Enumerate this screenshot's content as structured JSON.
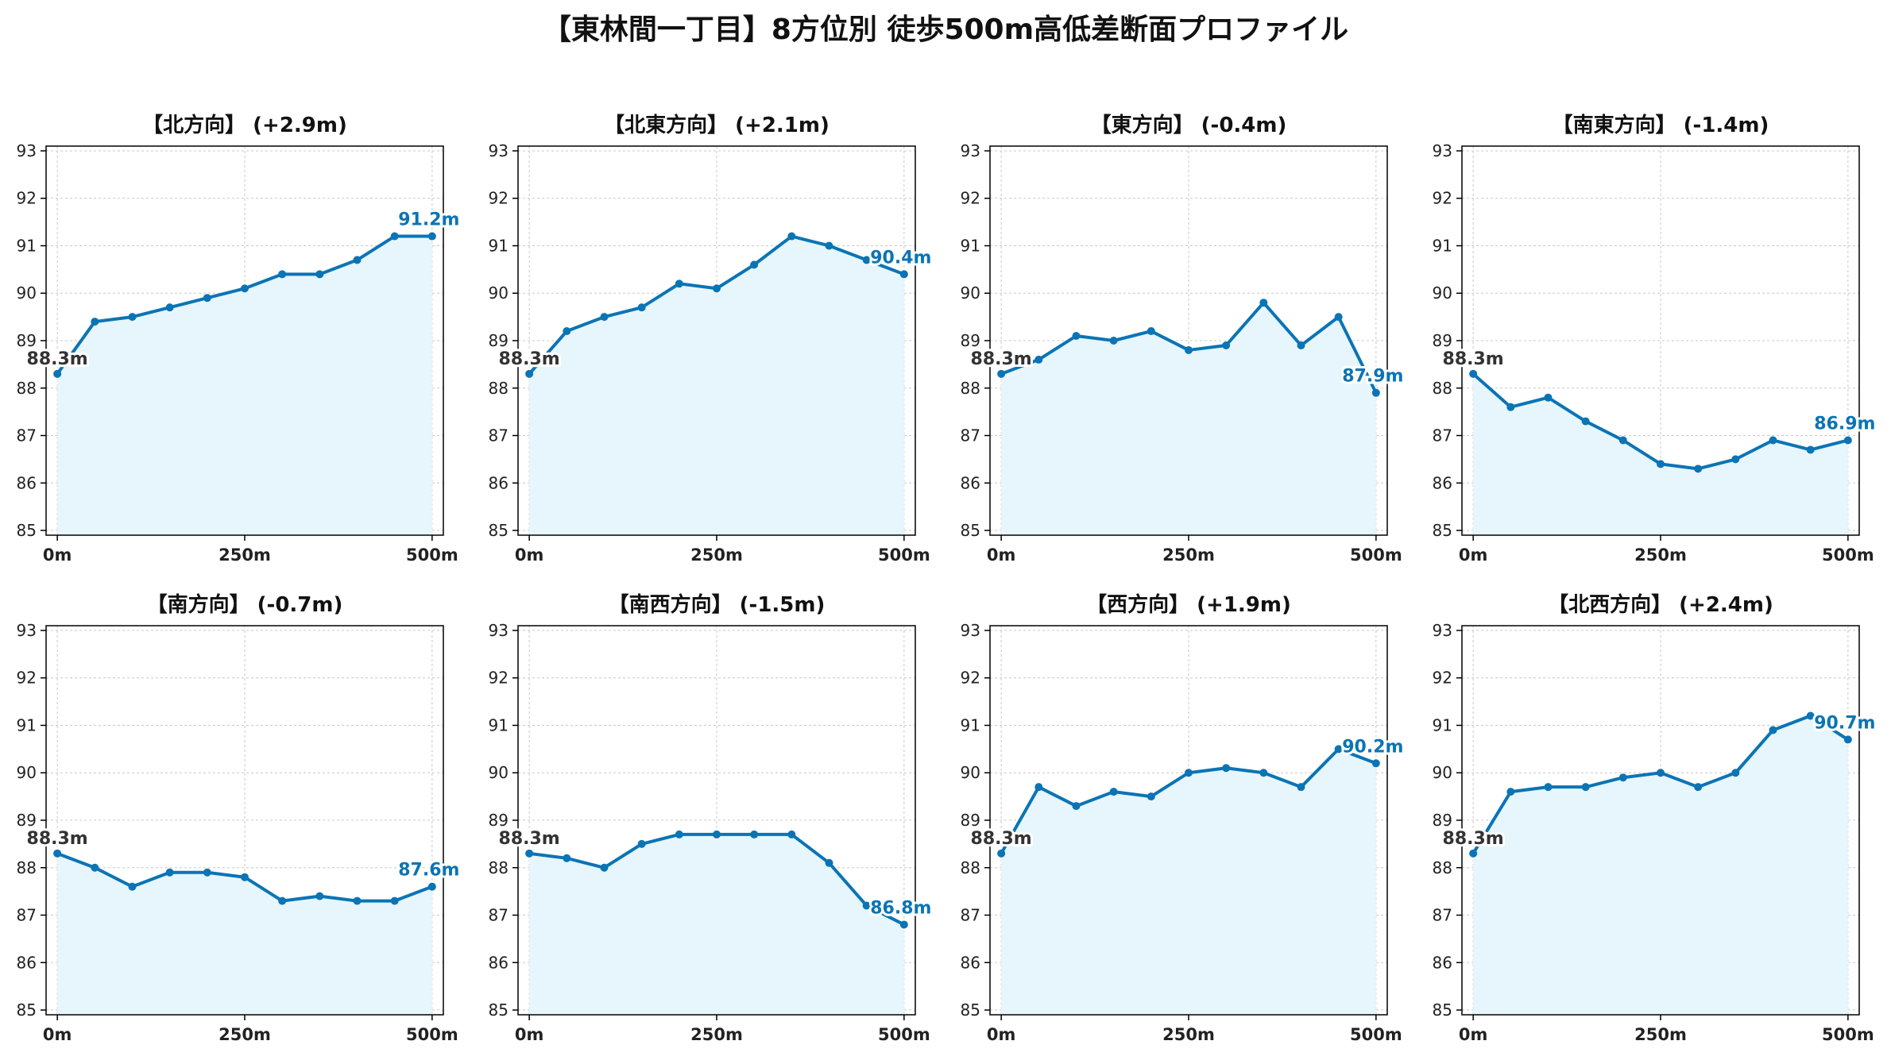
{
  "title": "【東林間一丁目】8方位別 徒歩500m高低差断面プロファイル",
  "colors": {
    "line": "#0b74b5",
    "fill": "#e6f6fc",
    "start_label": "#333333",
    "end_label": "#0b74b5",
    "grid": "#c8c8c8"
  },
  "chart_data": [
    {
      "type": "area",
      "title": "【北方向】 (+2.9m)",
      "x": [
        0,
        50,
        100,
        150,
        200,
        250,
        300,
        350,
        400,
        450,
        500
      ],
      "y": [
        88.3,
        89.4,
        89.5,
        89.7,
        89.9,
        90.1,
        90.4,
        90.4,
        90.7,
        91.2,
        91.2
      ],
      "xticks": [
        "0m",
        "250m",
        "500m"
      ],
      "yticks": [
        85,
        86,
        87,
        88,
        89,
        90,
        91,
        92,
        93
      ],
      "ylim": [
        84.9,
        93.1
      ],
      "xlim": [
        -15,
        515
      ],
      "grid": true,
      "start_label": "88.3m",
      "end_label": "91.2m"
    },
    {
      "type": "area",
      "title": "【北東方向】 (+2.1m)",
      "x": [
        0,
        50,
        100,
        150,
        200,
        250,
        300,
        350,
        400,
        450,
        500
      ],
      "y": [
        88.3,
        89.2,
        89.5,
        89.7,
        90.2,
        90.1,
        90.6,
        91.2,
        91.0,
        90.7,
        90.4
      ],
      "xticks": [
        "0m",
        "250m",
        "500m"
      ],
      "yticks": [
        85,
        86,
        87,
        88,
        89,
        90,
        91,
        92,
        93
      ],
      "ylim": [
        84.9,
        93.1
      ],
      "xlim": [
        -15,
        515
      ],
      "grid": true,
      "start_label": "88.3m",
      "end_label": "90.4m"
    },
    {
      "type": "area",
      "title": "【東方向】 (-0.4m)",
      "x": [
        0,
        50,
        100,
        150,
        200,
        250,
        300,
        350,
        400,
        450,
        500
      ],
      "y": [
        88.3,
        88.6,
        89.1,
        89.0,
        89.2,
        88.8,
        88.9,
        89.8,
        88.9,
        89.5,
        87.9
      ],
      "xticks": [
        "0m",
        "250m",
        "500m"
      ],
      "yticks": [
        85,
        86,
        87,
        88,
        89,
        90,
        91,
        92,
        93
      ],
      "ylim": [
        84.9,
        93.1
      ],
      "xlim": [
        -15,
        515
      ],
      "grid": true,
      "start_label": "88.3m",
      "end_label": "87.9m"
    },
    {
      "type": "area",
      "title": "【南東方向】 (-1.4m)",
      "x": [
        0,
        50,
        100,
        150,
        200,
        250,
        300,
        350,
        400,
        450,
        500
      ],
      "y": [
        88.3,
        87.6,
        87.8,
        87.3,
        86.9,
        86.4,
        86.3,
        86.5,
        86.9,
        86.7,
        86.9
      ],
      "xticks": [
        "0m",
        "250m",
        "500m"
      ],
      "yticks": [
        85,
        86,
        87,
        88,
        89,
        90,
        91,
        92,
        93
      ],
      "ylim": [
        84.9,
        93.1
      ],
      "xlim": [
        -15,
        515
      ],
      "grid": true,
      "start_label": "88.3m",
      "end_label": "86.9m"
    },
    {
      "type": "area",
      "title": "【南方向】 (-0.7m)",
      "x": [
        0,
        50,
        100,
        150,
        200,
        250,
        300,
        350,
        400,
        450,
        500
      ],
      "y": [
        88.3,
        88.0,
        87.6,
        87.9,
        87.9,
        87.8,
        87.3,
        87.4,
        87.3,
        87.3,
        87.6
      ],
      "xticks": [
        "0m",
        "250m",
        "500m"
      ],
      "yticks": [
        85,
        86,
        87,
        88,
        89,
        90,
        91,
        92,
        93
      ],
      "ylim": [
        84.9,
        93.1
      ],
      "xlim": [
        -15,
        515
      ],
      "grid": true,
      "start_label": "88.3m",
      "end_label": "87.6m"
    },
    {
      "type": "area",
      "title": "【南西方向】 (-1.5m)",
      "x": [
        0,
        50,
        100,
        150,
        200,
        250,
        300,
        350,
        400,
        450,
        500
      ],
      "y": [
        88.3,
        88.2,
        88.0,
        88.5,
        88.7,
        88.7,
        88.7,
        88.7,
        88.1,
        87.2,
        86.8
      ],
      "xticks": [
        "0m",
        "250m",
        "500m"
      ],
      "yticks": [
        85,
        86,
        87,
        88,
        89,
        90,
        91,
        92,
        93
      ],
      "ylim": [
        84.9,
        93.1
      ],
      "xlim": [
        -15,
        515
      ],
      "grid": true,
      "start_label": "88.3m",
      "end_label": "86.8m"
    },
    {
      "type": "area",
      "title": "【西方向】 (+1.9m)",
      "x": [
        0,
        50,
        100,
        150,
        200,
        250,
        300,
        350,
        400,
        450,
        500
      ],
      "y": [
        88.3,
        89.7,
        89.3,
        89.6,
        89.5,
        90.0,
        90.1,
        90.0,
        89.7,
        90.5,
        90.2
      ],
      "xticks": [
        "0m",
        "250m",
        "500m"
      ],
      "yticks": [
        85,
        86,
        87,
        88,
        89,
        90,
        91,
        92,
        93
      ],
      "ylim": [
        84.9,
        93.1
      ],
      "xlim": [
        -15,
        515
      ],
      "grid": true,
      "start_label": "88.3m",
      "end_label": "90.2m"
    },
    {
      "type": "area",
      "title": "【北西方向】 (+2.4m)",
      "x": [
        0,
        50,
        100,
        150,
        200,
        250,
        300,
        350,
        400,
        450,
        500
      ],
      "y": [
        88.3,
        89.6,
        89.7,
        89.7,
        89.9,
        90.0,
        89.7,
        90.0,
        90.9,
        91.2,
        90.7
      ],
      "xticks": [
        "0m",
        "250m",
        "500m"
      ],
      "yticks": [
        85,
        86,
        87,
        88,
        89,
        90,
        91,
        92,
        93
      ],
      "ylim": [
        84.9,
        93.1
      ],
      "xlim": [
        -15,
        515
      ],
      "grid": true,
      "start_label": "88.3m",
      "end_label": "90.7m"
    }
  ]
}
